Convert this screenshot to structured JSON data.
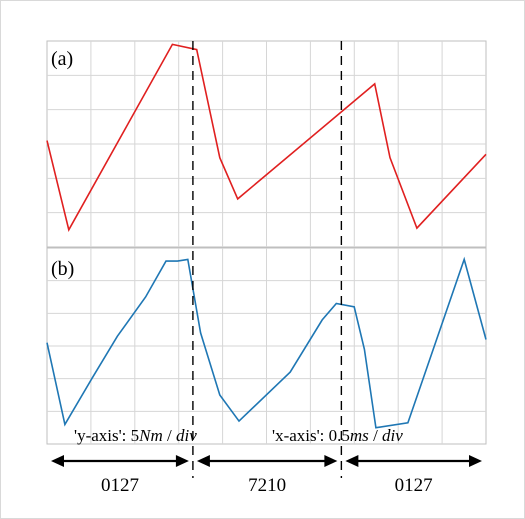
{
  "chart_data": [
    {
      "type": "line",
      "panel_label": "(a)",
      "color": "#e02020",
      "grid": true,
      "x": [
        0,
        0.17,
        0.98,
        1.17,
        1.35,
        1.49,
        2.56,
        2.68,
        2.89,
        3.43
      ],
      "y": [
        3.1,
        0.5,
        5.9,
        5.75,
        2.6,
        1.4,
        4.75,
        2.6,
        0.55,
        2.7
      ]
    },
    {
      "type": "line",
      "panel_label": "(b)",
      "color": "#1f77b4",
      "grid": true,
      "x": [
        0,
        0.14,
        0.35,
        0.55,
        0.77,
        0.93,
        1.02,
        1.1,
        1.2,
        1.35,
        1.5,
        1.9,
        2.15,
        2.26,
        2.4,
        2.48,
        2.57,
        2.82,
        3.26,
        3.43
      ],
      "y": [
        3.1,
        0.6,
        2.0,
        3.3,
        4.5,
        5.6,
        5.6,
        5.65,
        3.4,
        1.5,
        0.7,
        2.2,
        3.8,
        4.3,
        4.2,
        2.9,
        0.5,
        0.65,
        5.65,
        3.2
      ]
    }
  ],
  "x_axis": {
    "min": 0,
    "max": 3.43,
    "divisions": 10
  },
  "y_axis": {
    "min": 0,
    "max": 6,
    "divisions": 6
  },
  "annotations": {
    "y_axis_prefix": "'y-axis': 5",
    "y_axis_unit": "Nm",
    "y_axis_suffix": " / ",
    "y_axis_div": "div",
    "x_axis_prefix": "'x-axis': 0.5",
    "x_axis_unit": "ms",
    "x_axis_suffix": " / ",
    "x_axis_div": "div"
  },
  "segment_separators_x": [
    1.14,
    2.3
  ],
  "segments": [
    {
      "label": "0127"
    },
    {
      "label": "7210"
    },
    {
      "label": "0127"
    }
  ]
}
